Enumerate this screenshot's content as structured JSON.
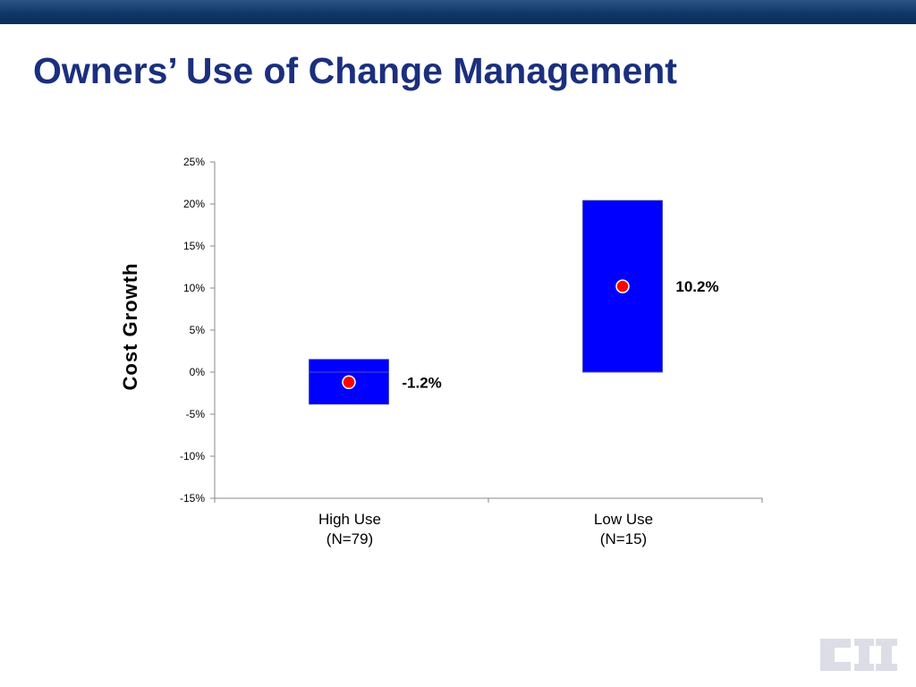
{
  "slide": {
    "title": "Owners’ Use of Change Management"
  },
  "logo": {
    "text": "CII",
    "color": "#dcdde6"
  },
  "colors": {
    "box": "#0000ff",
    "marker": "#ff0000",
    "axis": "#888888",
    "title": "#1b2f7e"
  },
  "chart_data": {
    "type": "bar",
    "subtype": "floating-range-with-point",
    "title": "",
    "xlabel": "",
    "ylabel": "Cost Growth",
    "ylim": [
      -15,
      25
    ],
    "yticks": [
      -15,
      -10,
      -5,
      0,
      5,
      10,
      15,
      20,
      25
    ],
    "ytick_labels": [
      "-15%",
      "-10%",
      "-5%",
      "0%",
      "5%",
      "10%",
      "15%",
      "20%",
      "25%"
    ],
    "grid": false,
    "legend": "none",
    "categories": [
      {
        "line1": "High Use",
        "line2": "(N=79)"
      },
      {
        "line1": "Low Use",
        "line2": "(N=15)"
      }
    ],
    "series": [
      {
        "low": -3.8,
        "high": 1.5,
        "point": -1.2,
        "label": "-1.2%"
      },
      {
        "low": 0.0,
        "high": 20.4,
        "point": 10.2,
        "label": "10.2%"
      }
    ]
  }
}
